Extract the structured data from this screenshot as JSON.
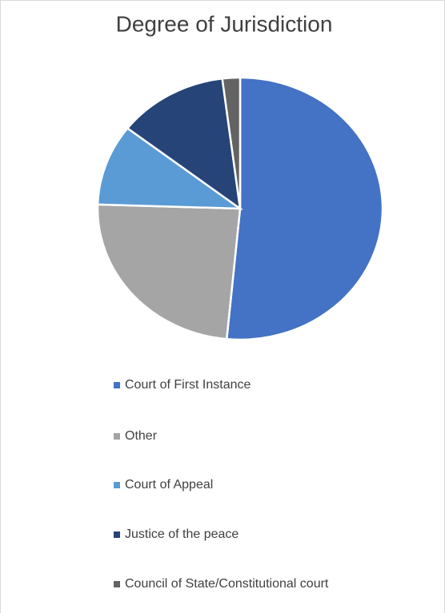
{
  "chart_data": {
    "type": "pie",
    "title": "Degree of Jurisdiction",
    "categories": [
      "Court of First Instance",
      "Other",
      "Court of Appeal",
      "Justice of the peace",
      "Council of State/Constitutional court"
    ],
    "values": [
      51.5,
      24,
      10,
      12.5,
      2
    ],
    "colors": [
      "#4472c4",
      "#a5a5a5",
      "#5b9bd5",
      "#264478",
      "#636363"
    ],
    "legend": "bottom"
  }
}
